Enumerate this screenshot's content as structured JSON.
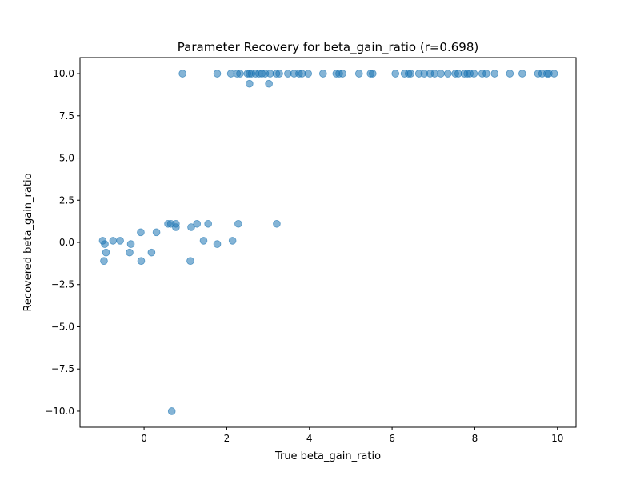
{
  "chart_data": {
    "type": "scatter",
    "title": "Parameter Recovery for beta_gain_ratio (r=0.698)",
    "xlabel": "True beta_gain_ratio",
    "ylabel": "Recovered beta_gain_ratio",
    "xlim": [
      -1.55,
      10.45
    ],
    "ylim": [
      -10.95,
      10.95
    ],
    "xticks": [
      0,
      2,
      4,
      6,
      8,
      10
    ],
    "xtick_labels": [
      "0",
      "2",
      "4",
      "6",
      "8",
      "10"
    ],
    "yticks": [
      -10.0,
      -7.5,
      -5.0,
      -2.5,
      0.0,
      2.5,
      5.0,
      7.5,
      10.0
    ],
    "ytick_labels": [
      "−10.0",
      "−7.5",
      "−5.0",
      "−2.5",
      "0.0",
      "2.5",
      "5.0",
      "7.5",
      "10.0"
    ],
    "grid": false,
    "marker_color": "#1f77b4",
    "marker_alpha": 0.55,
    "points": [
      [
        -1.0,
        0.1
      ],
      [
        -0.95,
        -0.1
      ],
      [
        -0.97,
        -1.1
      ],
      [
        -0.92,
        -0.6
      ],
      [
        -0.75,
        0.1
      ],
      [
        -0.58,
        0.1
      ],
      [
        -0.35,
        -0.6
      ],
      [
        -0.32,
        -0.1
      ],
      [
        -0.08,
        0.6
      ],
      [
        -0.07,
        -1.1
      ],
      [
        0.18,
        -0.6
      ],
      [
        0.3,
        0.6
      ],
      [
        0.58,
        1.1
      ],
      [
        0.65,
        1.1
      ],
      [
        0.77,
        1.1
      ],
      [
        0.77,
        0.9
      ],
      [
        0.67,
        -10.0
      ],
      [
        1.12,
        -1.1
      ],
      [
        1.14,
        0.9
      ],
      [
        1.28,
        1.1
      ],
      [
        1.44,
        0.1
      ],
      [
        1.55,
        1.1
      ],
      [
        1.77,
        -0.1
      ],
      [
        2.14,
        0.1
      ],
      [
        2.28,
        1.1
      ],
      [
        3.21,
        1.1
      ],
      [
        0.93,
        10.0
      ],
      [
        1.77,
        10.0
      ],
      [
        2.1,
        10.0
      ],
      [
        2.25,
        10.0
      ],
      [
        2.32,
        10.0
      ],
      [
        2.5,
        10.0
      ],
      [
        2.55,
        10.0
      ],
      [
        2.6,
        10.0
      ],
      [
        2.55,
        9.4
      ],
      [
        2.7,
        10.0
      ],
      [
        2.78,
        10.0
      ],
      [
        2.85,
        10.0
      ],
      [
        2.93,
        10.0
      ],
      [
        3.05,
        10.0
      ],
      [
        3.02,
        9.4
      ],
      [
        3.2,
        10.0
      ],
      [
        3.27,
        10.0
      ],
      [
        3.48,
        10.0
      ],
      [
        3.63,
        10.0
      ],
      [
        3.75,
        10.0
      ],
      [
        3.82,
        10.0
      ],
      [
        3.97,
        10.0
      ],
      [
        4.33,
        10.0
      ],
      [
        4.65,
        10.0
      ],
      [
        4.72,
        10.0
      ],
      [
        4.8,
        10.0
      ],
      [
        5.2,
        10.0
      ],
      [
        5.48,
        10.0
      ],
      [
        5.53,
        10.0
      ],
      [
        6.08,
        10.0
      ],
      [
        6.3,
        10.0
      ],
      [
        6.4,
        10.0
      ],
      [
        6.45,
        10.0
      ],
      [
        6.65,
        10.0
      ],
      [
        6.78,
        10.0
      ],
      [
        6.92,
        10.0
      ],
      [
        7.03,
        10.0
      ],
      [
        7.18,
        10.0
      ],
      [
        7.35,
        10.0
      ],
      [
        7.53,
        10.0
      ],
      [
        7.6,
        10.0
      ],
      [
        7.75,
        10.0
      ],
      [
        7.82,
        10.0
      ],
      [
        7.88,
        10.0
      ],
      [
        7.98,
        10.0
      ],
      [
        8.18,
        10.0
      ],
      [
        8.28,
        10.0
      ],
      [
        8.48,
        10.0
      ],
      [
        8.85,
        10.0
      ],
      [
        9.15,
        10.0
      ],
      [
        9.53,
        10.0
      ],
      [
        9.63,
        10.0
      ],
      [
        9.75,
        10.0
      ],
      [
        9.79,
        10.0
      ],
      [
        9.92,
        10.0
      ]
    ]
  }
}
